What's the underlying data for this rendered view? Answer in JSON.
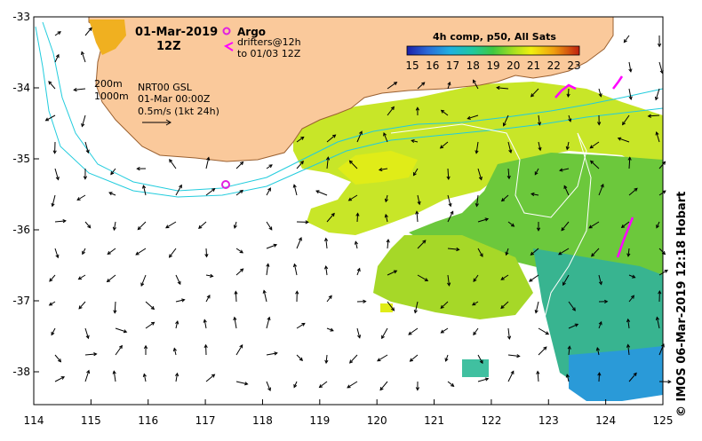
{
  "map": {
    "date_title": "01-Mar-2019",
    "time_title": "12Z",
    "legend_argo": "Argo",
    "legend_drifters_1": "drifters@12h",
    "legend_drifters_2": "to 01/03 12Z",
    "contour_200": "200m",
    "contour_1000": "1000m",
    "product_line1": "NRT00 GSL",
    "product_line2": "01-Mar 00:00Z",
    "product_line3": "0.5m/s (1kt 24h)",
    "colorbar_title": "4h comp, p50, All Sats",
    "colorbar_ticks": [
      "15",
      "16",
      "17",
      "18",
      "19",
      "20",
      "21",
      "22",
      "23"
    ],
    "credit": "© IMOS 06-Mar-2019 12:18 Hobart",
    "lon_ticks": [
      "114",
      "115",
      "116",
      "117",
      "118",
      "119",
      "120",
      "121",
      "122",
      "123",
      "124",
      "125"
    ],
    "lat_ticks": [
      "-33",
      "-34",
      "-35",
      "-36",
      "-37",
      "-38"
    ],
    "colors": {
      "land": "#fac99b",
      "coast": "#9a6030",
      "isobath": "#22ccdd",
      "argo": "#e020e0",
      "drifter": "#ff00ff"
    }
  }
}
